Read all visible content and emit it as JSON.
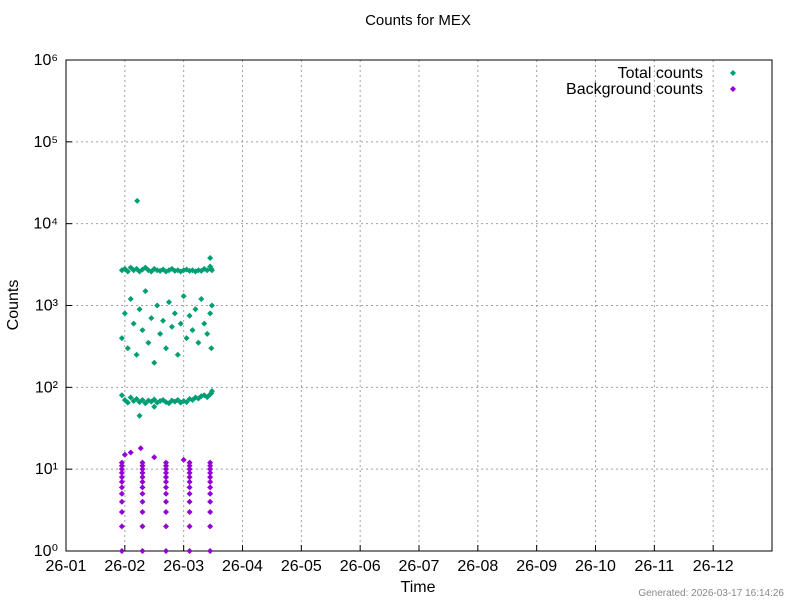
{
  "chart_data": {
    "type": "scatter",
    "title": "Counts for MEX",
    "x_label": "Time",
    "y_label": "Counts",
    "footnote": "Generated: 2026-03-17 16:14:26",
    "xlim": [
      0,
      12
    ],
    "xticks": [
      {
        "value": 0,
        "label": "26-01"
      },
      {
        "value": 1,
        "label": "26-02"
      },
      {
        "value": 2,
        "label": "26-03"
      },
      {
        "value": 3,
        "label": "26-04"
      },
      {
        "value": 4,
        "label": "26-05"
      },
      {
        "value": 5,
        "label": "26-06"
      },
      {
        "value": 6,
        "label": "26-07"
      },
      {
        "value": 7,
        "label": "26-08"
      },
      {
        "value": 8,
        "label": "26-09"
      },
      {
        "value": 9,
        "label": "26-10"
      },
      {
        "value": 10,
        "label": "26-11"
      },
      {
        "value": 11,
        "label": "26-12"
      }
    ],
    "ylim": [
      1,
      1000000
    ],
    "y_scale": "log",
    "yticks": [
      {
        "value": 1,
        "label": "10⁰"
      },
      {
        "value": 10,
        "label": "10¹"
      },
      {
        "value": 100,
        "label": "10²"
      },
      {
        "value": 1000,
        "label": "10³"
      },
      {
        "value": 10000,
        "label": "10⁴"
      },
      {
        "value": 100000,
        "label": "10⁵"
      },
      {
        "value": 1000000,
        "label": "10⁶"
      }
    ],
    "grid": true,
    "legend": "top-right",
    "series": [
      {
        "name": "Total counts",
        "color": "#009e73",
        "x": [
          0.95,
          1.0,
          1.05,
          1.1,
          1.15,
          1.2,
          1.25,
          1.3,
          1.35,
          1.4,
          1.45,
          1.5,
          1.55,
          1.6,
          1.65,
          1.7,
          1.75,
          1.8,
          1.85,
          1.9,
          1.95,
          2.0,
          2.05,
          2.1,
          2.15,
          2.2,
          2.25,
          2.3,
          2.35,
          2.4,
          2.45,
          2.47,
          2.48,
          0.95,
          1.0,
          1.05,
          1.1,
          1.15,
          1.2,
          1.25,
          1.3,
          1.35,
          1.4,
          1.45,
          1.5,
          1.55,
          1.6,
          1.65,
          1.7,
          1.75,
          1.8,
          1.85,
          1.9,
          1.95,
          2.0,
          2.05,
          2.1,
          2.15,
          2.2,
          2.25,
          2.3,
          2.35,
          2.4,
          2.45,
          2.47,
          2.48,
          0.95,
          1.0,
          1.05,
          1.1,
          1.15,
          1.2,
          1.25,
          1.3,
          1.35,
          1.4,
          1.45,
          1.5,
          1.55,
          1.6,
          1.65,
          1.7,
          1.75,
          1.8,
          1.85,
          1.9,
          1.95,
          2.0,
          2.05,
          2.1,
          2.15,
          2.2,
          2.25,
          2.3,
          2.35,
          2.4,
          2.45,
          2.47,
          2.48,
          1.21,
          1.25,
          1.5,
          2.45
        ],
        "values": [
          2700,
          2800,
          2600,
          2900,
          2700,
          2800,
          2600,
          2750,
          2900,
          2700,
          2600,
          2800,
          2700,
          2650,
          2750,
          2600,
          2700,
          2800,
          2650,
          2700,
          2600,
          2700,
          2750,
          2650,
          2700,
          2600,
          2700,
          2650,
          2800,
          2700,
          3000,
          2800,
          2700,
          400,
          800,
          300,
          1200,
          600,
          250,
          900,
          500,
          1500,
          350,
          700,
          200,
          1000,
          450,
          650,
          300,
          1100,
          550,
          800,
          250,
          600,
          1300,
          400,
          750,
          500,
          900,
          350,
          1200,
          600,
          450,
          800,
          300,
          1000,
          80,
          70,
          65,
          75,
          68,
          72,
          66,
          70,
          64,
          69,
          67,
          71,
          65,
          68,
          70,
          66,
          64,
          69,
          67,
          70,
          65,
          68,
          66,
          72,
          70,
          75,
          73,
          78,
          80,
          76,
          82,
          85,
          90,
          19000,
          45,
          58,
          3800
        ]
      },
      {
        "name": "Background counts",
        "color": "#9400d3",
        "x": [
          0.95,
          1.3,
          1.7,
          2.1,
          2.45,
          0.95,
          1.3,
          1.7,
          2.1,
          2.45,
          0.95,
          1.3,
          1.7,
          2.1,
          2.45,
          0.95,
          1.3,
          1.7,
          2.1,
          2.45,
          0.95,
          1.3,
          1.7,
          2.1,
          2.45,
          0.95,
          1.3,
          1.7,
          2.1,
          2.45,
          0.95,
          1.3,
          1.7,
          2.1,
          2.45,
          0.95,
          1.3,
          1.7,
          2.1,
          2.45,
          0.95,
          1.3,
          1.7,
          2.1,
          2.45,
          0.95,
          1.3,
          1.7,
          2.1,
          2.45,
          0.95,
          1.3,
          1.7,
          2.1,
          2.45,
          0.95,
          1.3,
          1.7,
          2.1,
          2.45,
          1.27,
          1.0,
          1.1,
          1.5,
          2.0
        ],
        "values": [
          1,
          1,
          1,
          1,
          1,
          2,
          2,
          2,
          2,
          2,
          3,
          3,
          3,
          3,
          3,
          4,
          4,
          4,
          4,
          4,
          5,
          5,
          5,
          5,
          5,
          6,
          6,
          6,
          6,
          6,
          7,
          7,
          7,
          7,
          7,
          8,
          8,
          8,
          8,
          8,
          9,
          9,
          9,
          9,
          9,
          10,
          10,
          10,
          10,
          10,
          11,
          11,
          11,
          11,
          11,
          12,
          12,
          12,
          12,
          12,
          18,
          15,
          16,
          14,
          13
        ]
      }
    ]
  }
}
